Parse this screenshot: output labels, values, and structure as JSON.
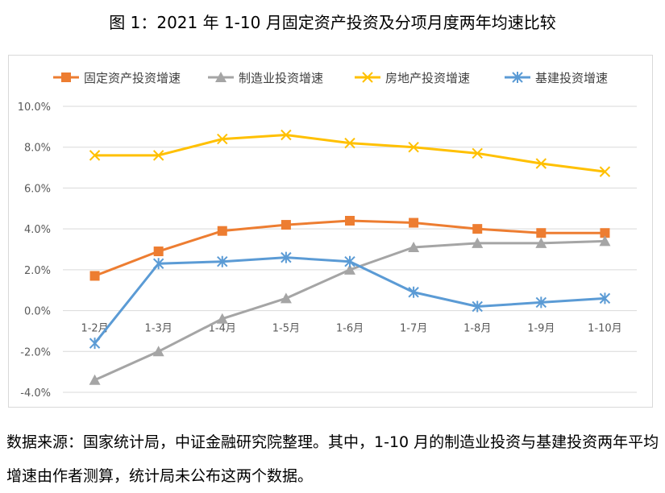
{
  "page_title": "图 1：2021 年 1-10 月固定资产投资及分项月度两年均速比较",
  "source_note": "数据来源：国家统计局，中证金融研究院整理。其中，1-10 月的制造业投资与基建投资两年平均增速由作者测算，统计局未公布这两个数据。",
  "chart_data": {
    "type": "line",
    "title": "图 1：2021 年 1-10 月固定资产投资及分项月度两年均速比较",
    "categories": [
      "1-2月",
      "1-3月",
      "1-4月",
      "1-5月",
      "1-6月",
      "1-7月",
      "1-8月",
      "1-9月",
      "1-10月"
    ],
    "y_ticks": [
      "10.0%",
      "8.0%",
      "6.0%",
      "4.0%",
      "2.0%",
      "0.0%",
      "-2.0%",
      "-4.0%"
    ],
    "ylim": [
      -4,
      10
    ],
    "grid": true,
    "legend_position": "top",
    "series": [
      {
        "name": "固定资产投资增速",
        "color": "#ED7D31",
        "marker": "square",
        "values": [
          1.7,
          2.9,
          3.9,
          4.2,
          4.4,
          4.3,
          4.0,
          3.8,
          3.8
        ]
      },
      {
        "name": "制造业投资增速",
        "color": "#A5A5A5",
        "marker": "triangle",
        "values": [
          -3.4,
          -2.0,
          -0.4,
          0.6,
          2.0,
          3.1,
          3.3,
          3.3,
          3.4
        ]
      },
      {
        "name": "房地产投资增速",
        "color": "#FFC000",
        "marker": "x",
        "values": [
          7.6,
          7.6,
          8.4,
          8.6,
          8.2,
          8.0,
          7.7,
          7.2,
          6.8
        ]
      },
      {
        "name": "基建投资增速",
        "color": "#5B9BD5",
        "marker": "star",
        "values": [
          -1.6,
          2.3,
          2.4,
          2.6,
          2.4,
          0.9,
          0.2,
          0.4,
          0.6
        ]
      }
    ]
  }
}
